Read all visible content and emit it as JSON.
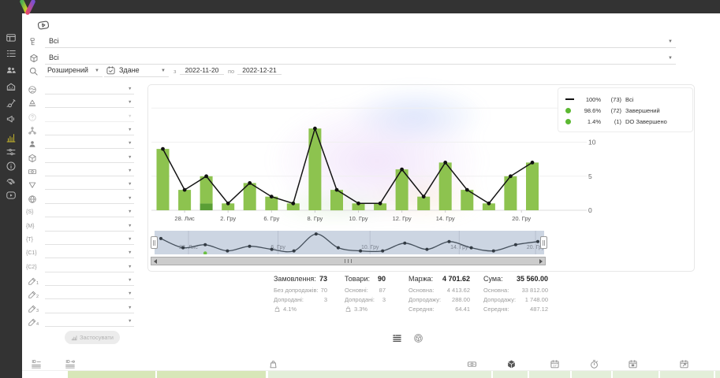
{
  "sidebar": {
    "items": [
      {
        "icon": "dashboard-icon"
      },
      {
        "icon": "timeline-icon"
      },
      {
        "icon": "users-icon"
      },
      {
        "icon": "organization-icon"
      },
      {
        "icon": "trolley-icon"
      },
      {
        "icon": "megaphone-icon"
      },
      {
        "icon": "chart-icon",
        "active": true
      },
      {
        "icon": "sliders-icon"
      },
      {
        "icon": "info-icon"
      },
      {
        "icon": "handshake-icon"
      },
      {
        "icon": "video-icon"
      }
    ]
  },
  "toolbar": {
    "video_hint_icon": "play-badge-icon"
  },
  "filters": {
    "rows": [
      {
        "icon": "status-tree-icon",
        "value": "Всі"
      },
      {
        "icon": "package-icon",
        "value": "Всі"
      }
    ],
    "mode": {
      "icon": "search-icon",
      "label": "Розширений"
    },
    "date_type": {
      "icon": "calendar-check-icon",
      "label": "Здане"
    },
    "range": {
      "from_label": "з",
      "from": "2022-11-20",
      "to_label": "по",
      "to": "2022-12-21"
    }
  },
  "filter_panel": {
    "rows": [
      {
        "icon": "world-icon"
      },
      {
        "icon": "stage-icon"
      },
      {
        "icon": "question-icon",
        "disabled": true
      },
      {
        "icon": "sitemap-icon"
      },
      {
        "icon": "person-icon"
      },
      {
        "icon": "package-icon"
      },
      {
        "icon": "money-icon"
      },
      {
        "icon": "funnel-icon"
      },
      {
        "icon": "globe-icon"
      },
      {
        "text": "{S}"
      },
      {
        "text": "{M}"
      },
      {
        "text": "{T}"
      },
      {
        "text": "{C1}"
      },
      {
        "text": "{C2}"
      },
      {
        "icon": "pencil-icon",
        "sub": "1"
      },
      {
        "icon": "pencil-icon",
        "sub": "2"
      },
      {
        "icon": "pencil-icon",
        "sub": "3"
      },
      {
        "icon": "pencil-icon",
        "sub": "4"
      }
    ],
    "apply_label": "Застосувати",
    "apply_icon": "mini-chart-icon"
  },
  "chart_data": {
    "type": "bar",
    "x_labels": [
      {
        "i": 1,
        "label": "28. Лис"
      },
      {
        "i": 3,
        "label": "2. Гру"
      },
      {
        "i": 5,
        "label": "6. Гру"
      },
      {
        "i": 7,
        "label": "8. Гру"
      },
      {
        "i": 9,
        "label": "10. Гру"
      },
      {
        "i": 11,
        "label": "12. Гру"
      },
      {
        "i": 13,
        "label": "14. Гру"
      },
      {
        "i": 16.5,
        "label": "20. Гру"
      }
    ],
    "yticks": [
      0,
      5,
      10
    ],
    "ylim": [
      0,
      15
    ],
    "series": [
      {
        "name": "Всі",
        "type": "line",
        "color": "#141414",
        "values": [
          9,
          3,
          5,
          1,
          4,
          2,
          1,
          12,
          3,
          1,
          1,
          6,
          2,
          7,
          3,
          1,
          5,
          7
        ]
      },
      {
        "name": "Завершений",
        "type": "bar",
        "color": "#8dc34f",
        "values": [
          9,
          3,
          4,
          1,
          4,
          2,
          1,
          12,
          3,
          1,
          1,
          6,
          2,
          7,
          3,
          1,
          5,
          7
        ]
      },
      {
        "name": "DO Завершено",
        "type": "bar",
        "color": "#5a9e35",
        "values": [
          0,
          0,
          1,
          0,
          0,
          0,
          0,
          0,
          0,
          0,
          0,
          0,
          0,
          0,
          0,
          0,
          0,
          0
        ]
      }
    ],
    "legend": [
      {
        "swatch": "line",
        "pct": "100%",
        "count": "(73)",
        "label": "Всі"
      },
      {
        "swatch": "dot",
        "pct": "98.6%",
        "count": "(72)",
        "label": "Завершений"
      },
      {
        "swatch": "dot",
        "pct": "1.4%",
        "count": "(1)",
        "label": "DO Завершено"
      }
    ],
    "navigator": {
      "labels": [
        {
          "pos": 0.087,
          "label": "28. Лис"
        },
        {
          "pos": 0.317,
          "label": "6. Гру"
        },
        {
          "pos": 0.553,
          "label": "10. Гру"
        },
        {
          "pos": 0.782,
          "label": "14. Гру"
        },
        {
          "pos": 0.978,
          "label": "20. Гру"
        }
      ],
      "do_marker_index": 2
    },
    "colors": {
      "bar": "#8dc34f",
      "bar_do": "#5a9e35",
      "line": "#141414",
      "legend_dot": "#5cb832",
      "navigator_bg": "#ccd5e2"
    }
  },
  "summary": {
    "columns": [
      {
        "title": "Замовлення:",
        "value": "73",
        "rows": [
          {
            "label": "Без допродажів:",
            "value": "70"
          },
          {
            "label": "Допродані:",
            "value": "3"
          },
          {
            "icon": "upsell-rate-icon",
            "value": "4.1%"
          }
        ]
      },
      {
        "title": "Товари:",
        "value": "90",
        "rows": [
          {
            "label": "Основні:",
            "value": "87"
          },
          {
            "label": "Допродані:",
            "value": "3"
          },
          {
            "icon": "upsell-rate-icon",
            "value": "3.3%"
          }
        ]
      },
      {
        "title": "Маржа:",
        "value": "4 701.62",
        "rows": [
          {
            "label": "Основна:",
            "value": "4 413.62"
          },
          {
            "label": "Допродажу:",
            "value": "288.00"
          },
          {
            "label": "Середня:",
            "value": "64.41"
          }
        ]
      },
      {
        "title": "Сума:",
        "value": "35 560.00",
        "rows": [
          {
            "label": "Основна:",
            "value": "33 812.00"
          },
          {
            "label": "Допродажу:",
            "value": "1 748.00"
          },
          {
            "label": "Середня:",
            "value": "487.12"
          }
        ]
      }
    ]
  },
  "view_toggles": [
    {
      "icon": "list-view-icon",
      "active": true
    },
    {
      "icon": "box-circle-icon",
      "active": false
    }
  ],
  "bottom_table": {
    "header_icons": [
      {
        "icon": "id-equals-icon"
      },
      {
        "icon": "id-o-icon"
      },
      {
        "icon": "bag-icon"
      },
      {
        "icon": "money-icon"
      },
      {
        "icon": "package-dark-icon"
      },
      {
        "icon": "calendar-17-icon"
      },
      {
        "icon": "timer-icon"
      },
      {
        "icon": "calendar-box-icon"
      },
      {
        "icon": "calendar-export-icon"
      }
    ]
  }
}
